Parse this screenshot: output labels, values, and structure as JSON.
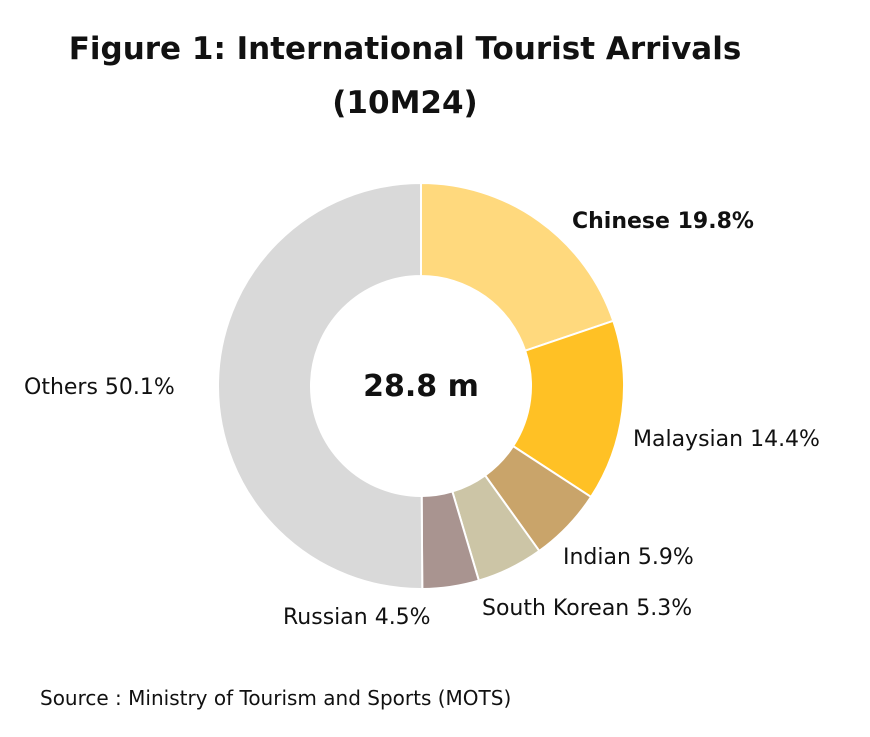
{
  "title_line_1": "Figure 1: International Tourist Arrivals",
  "title_line_2": "(10M24)",
  "source": "Source : Ministry of Tourism and Sports (MOTS)",
  "chart_data": {
    "type": "pie",
    "variant": "donut",
    "title": "Figure 1: International Tourist Arrivals (10M24)",
    "center_label": "28.8 m",
    "start": "12 o'clock",
    "direction": "clockwise",
    "legend": "none (data labels beside slices)",
    "slices": [
      {
        "name": "Chinese",
        "value": 19.8,
        "label": "Chinese 19.8%",
        "color": "#FFD97D",
        "bold": true
      },
      {
        "name": "Malaysian",
        "value": 14.4,
        "label": "Malaysian 14.4%",
        "color": "#FFC125",
        "bold": false
      },
      {
        "name": "Indian",
        "value": 5.9,
        "label": "Indian 5.9%",
        "color": "#C9A46A",
        "bold": false
      },
      {
        "name": "South Korean",
        "value": 5.3,
        "label": "South Korean 5.3%",
        "color": "#CCC5A6",
        "bold": false
      },
      {
        "name": "Russian",
        "value": 4.5,
        "label": "Russian 4.5%",
        "color": "#A99490",
        "bold": false
      },
      {
        "name": "Others",
        "value": 50.1,
        "label": "Others 50.1%",
        "color": "#D9D9D9",
        "bold": false
      }
    ]
  }
}
